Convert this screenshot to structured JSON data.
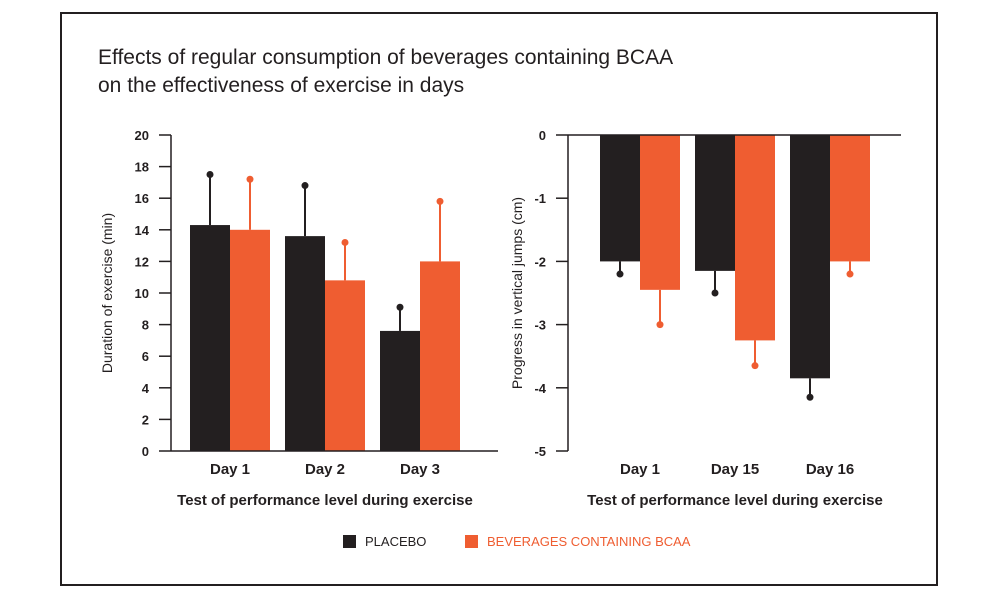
{
  "title": {
    "line1": "Effects of regular consumption of beverages containing BCAA",
    "line2": "on the effectiveness of exercise in days"
  },
  "colors": {
    "placebo": "#231f20",
    "bcaa": "#ef5d31",
    "text": "#231f20"
  },
  "legend": {
    "placebo": "PLACEBO",
    "bcaa": "BEVERAGES CONTAINING BCAA"
  },
  "chart_data": [
    {
      "type": "bar",
      "xlabel": "Test of performance level during exercise",
      "ylabel": "Duration of exercise (min)",
      "ylim": [
        0,
        20
      ],
      "yticks": [
        "0",
        "2",
        "4",
        "6",
        "8",
        "10",
        "12",
        "14",
        "16",
        "18",
        "20"
      ],
      "categories": [
        "Day 1",
        "Day 2",
        "Day 3"
      ],
      "series": [
        {
          "name": "PLACEBO",
          "values": [
            14.3,
            13.6,
            7.6
          ],
          "error_to": [
            17.5,
            16.8,
            9.1
          ]
        },
        {
          "name": "BEVERAGES CONTAINING BCAA",
          "values": [
            14.0,
            10.8,
            12.0
          ],
          "error_to": [
            17.2,
            13.2,
            15.8
          ]
        }
      ],
      "grid": false
    },
    {
      "type": "bar",
      "xlabel": "Test of performance level during exercise",
      "ylabel": "Progress in vertical jumps (cm)",
      "ylim": [
        -5,
        0
      ],
      "yticks": [
        "0",
        "-1",
        "-2",
        "-3",
        "-4",
        "-5"
      ],
      "categories": [
        "Day 1",
        "Day 15",
        "Day 16"
      ],
      "series": [
        {
          "name": "PLACEBO",
          "values": [
            -2.0,
            -2.15,
            -3.85
          ],
          "error_to": [
            -2.2,
            -2.5,
            -4.15
          ]
        },
        {
          "name": "BEVERAGES CONTAINING BCAA",
          "values": [
            -2.45,
            -3.25,
            -2.0
          ],
          "error_to": [
            -3.0,
            -3.65,
            -2.2
          ]
        }
      ],
      "grid": false
    }
  ]
}
